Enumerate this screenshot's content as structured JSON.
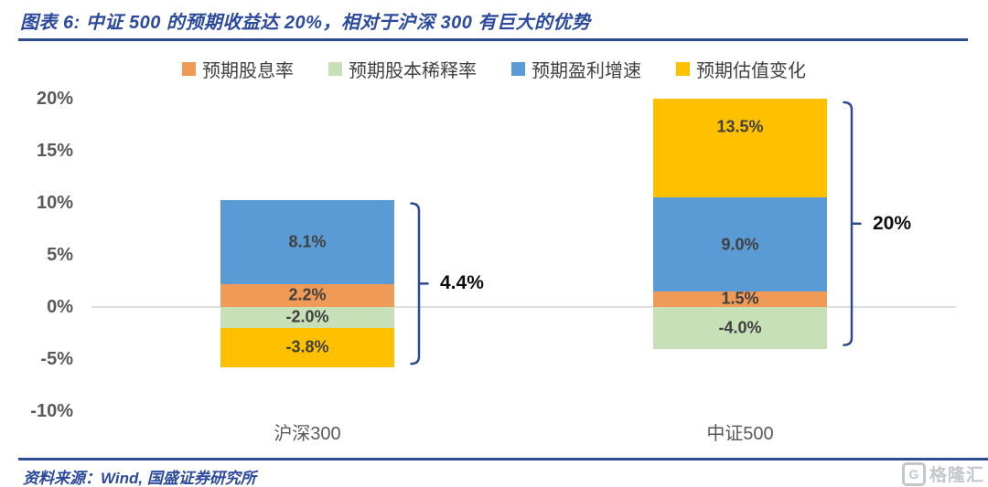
{
  "figure": {
    "title": "图表 6:  中证 500 的预期收益达 20%，相对于沪深 300 有巨大的优势",
    "source": "资料来源：Wind, 国盛证券研究所",
    "watermark": "格隆汇",
    "accent_color": "#2E4B8F"
  },
  "chart_data": {
    "type": "bar",
    "stacked": true,
    "title": "图表 6:  中证 500 的预期收益达 20%，相对于沪深 300 有巨大的优势",
    "categories": [
      "沪深300",
      "中证500"
    ],
    "series": [
      {
        "name": "预期股息率",
        "color": "#EF9A56",
        "values": [
          2.2,
          1.5
        ],
        "labels": [
          "2.2%",
          "1.5%"
        ]
      },
      {
        "name": "预期股本稀释率",
        "color": "#C8E0B7",
        "values": [
          -2.0,
          -4.0
        ],
        "labels": [
          "-2.0%",
          "-4.0%"
        ]
      },
      {
        "name": "预期盈利增速",
        "color": "#5B9BD5",
        "values": [
          8.1,
          9.0
        ],
        "labels": [
          "8.1%",
          "9.0%"
        ]
      },
      {
        "name": "预期估值变化",
        "color": "#FFC000",
        "values": [
          -3.8,
          13.5
        ],
        "labels": [
          "-3.8%",
          "13.5%"
        ]
      }
    ],
    "totals": [
      {
        "label": "4.4%",
        "value": 4.4
      },
      {
        "label": "20%",
        "value": 20.0
      }
    ],
    "ylim": [
      -10,
      20
    ],
    "yticks": [
      "20%",
      "15%",
      "10%",
      "5%",
      "0%",
      "-5%",
      "-10%"
    ],
    "grid": "zero-line-only",
    "legend_position": "top",
    "note": "positive stack of 中证500 (1.5+9.0+13.5=24%) is clipped at axis max 20%"
  }
}
